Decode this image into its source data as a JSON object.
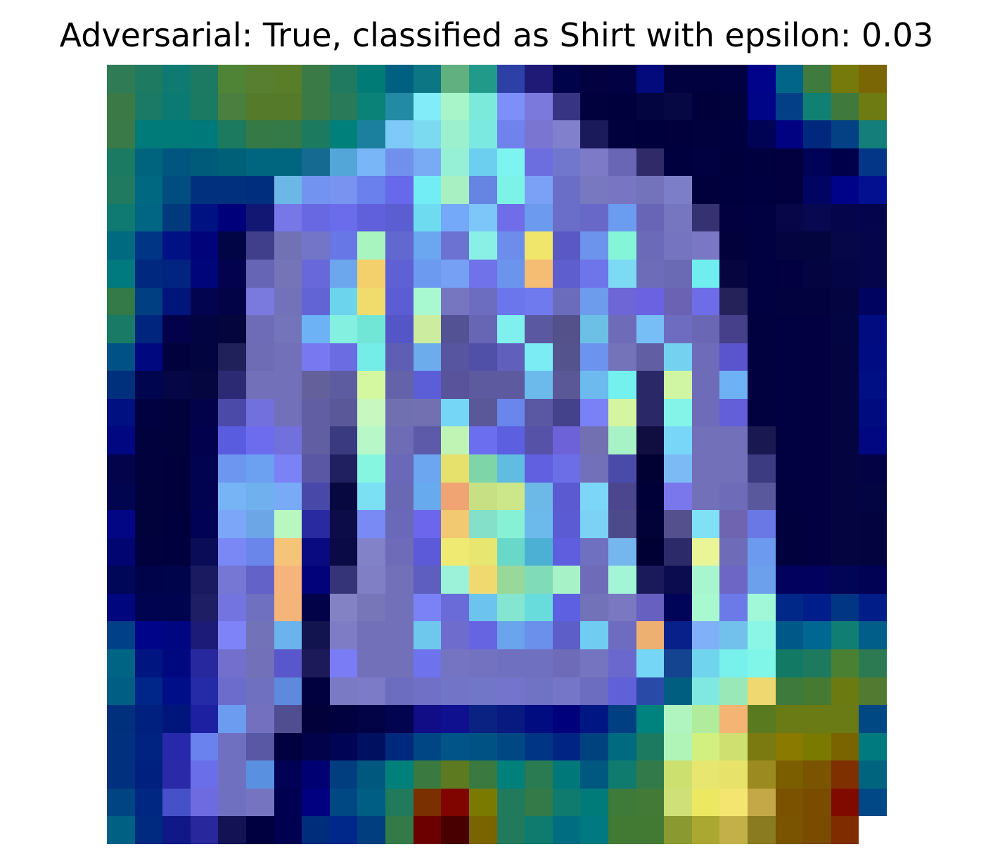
{
  "figure": {
    "title": "Adversarial: True, classified as Shirt with epsilon: 0.03"
  },
  "image": {
    "kind": "adversarial-image-with-saliency-overlay",
    "grid_rows": 28,
    "grid_cols": 28,
    "colormap": "jet",
    "blend": "grayscale-image-over-jet-heatmap"
  }
}
